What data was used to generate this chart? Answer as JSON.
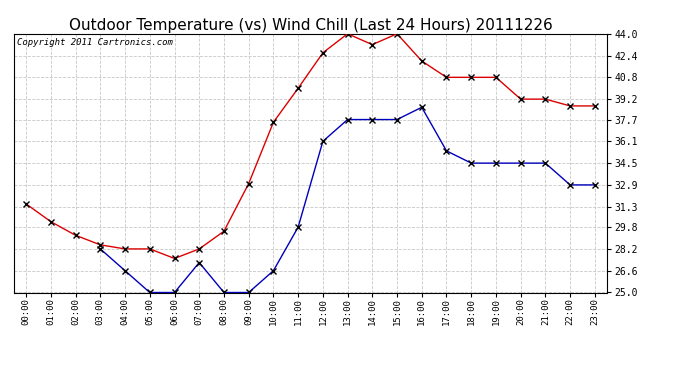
{
  "title": "Outdoor Temperature (vs) Wind Chill (Last 24 Hours) 20111226",
  "copyright": "Copyright 2011 Cartronics.com",
  "x_labels": [
    "00:00",
    "01:00",
    "02:00",
    "03:00",
    "04:00",
    "05:00",
    "06:00",
    "07:00",
    "08:00",
    "09:00",
    "10:00",
    "11:00",
    "12:00",
    "13:00",
    "14:00",
    "15:00",
    "16:00",
    "17:00",
    "18:00",
    "19:00",
    "20:00",
    "21:00",
    "22:00",
    "23:00"
  ],
  "red_data": [
    31.5,
    30.2,
    29.2,
    28.5,
    28.2,
    28.2,
    27.5,
    28.2,
    29.5,
    33.0,
    37.5,
    40.0,
    42.6,
    44.0,
    43.2,
    44.0,
    42.0,
    40.8,
    40.8,
    40.8,
    39.2,
    39.2,
    38.7,
    38.7
  ],
  "blue_data": [
    null,
    null,
    null,
    28.2,
    26.6,
    25.0,
    25.0,
    27.2,
    25.0,
    25.0,
    26.6,
    29.8,
    36.1,
    37.7,
    37.7,
    37.7,
    38.6,
    35.4,
    34.5,
    34.5,
    34.5,
    34.5,
    32.9,
    32.9
  ],
  "ylim": [
    25.0,
    44.0
  ],
  "yticks": [
    25.0,
    26.6,
    28.2,
    29.8,
    31.3,
    32.9,
    34.5,
    36.1,
    37.7,
    39.2,
    40.8,
    42.4,
    44.0
  ],
  "background_color": "#ffffff",
  "plot_bg_color": "#ffffff",
  "grid_color": "#c8c8c8",
  "red_color": "#dd0000",
  "blue_color": "#0000bb",
  "title_fontsize": 11,
  "copyright_fontsize": 6.5
}
